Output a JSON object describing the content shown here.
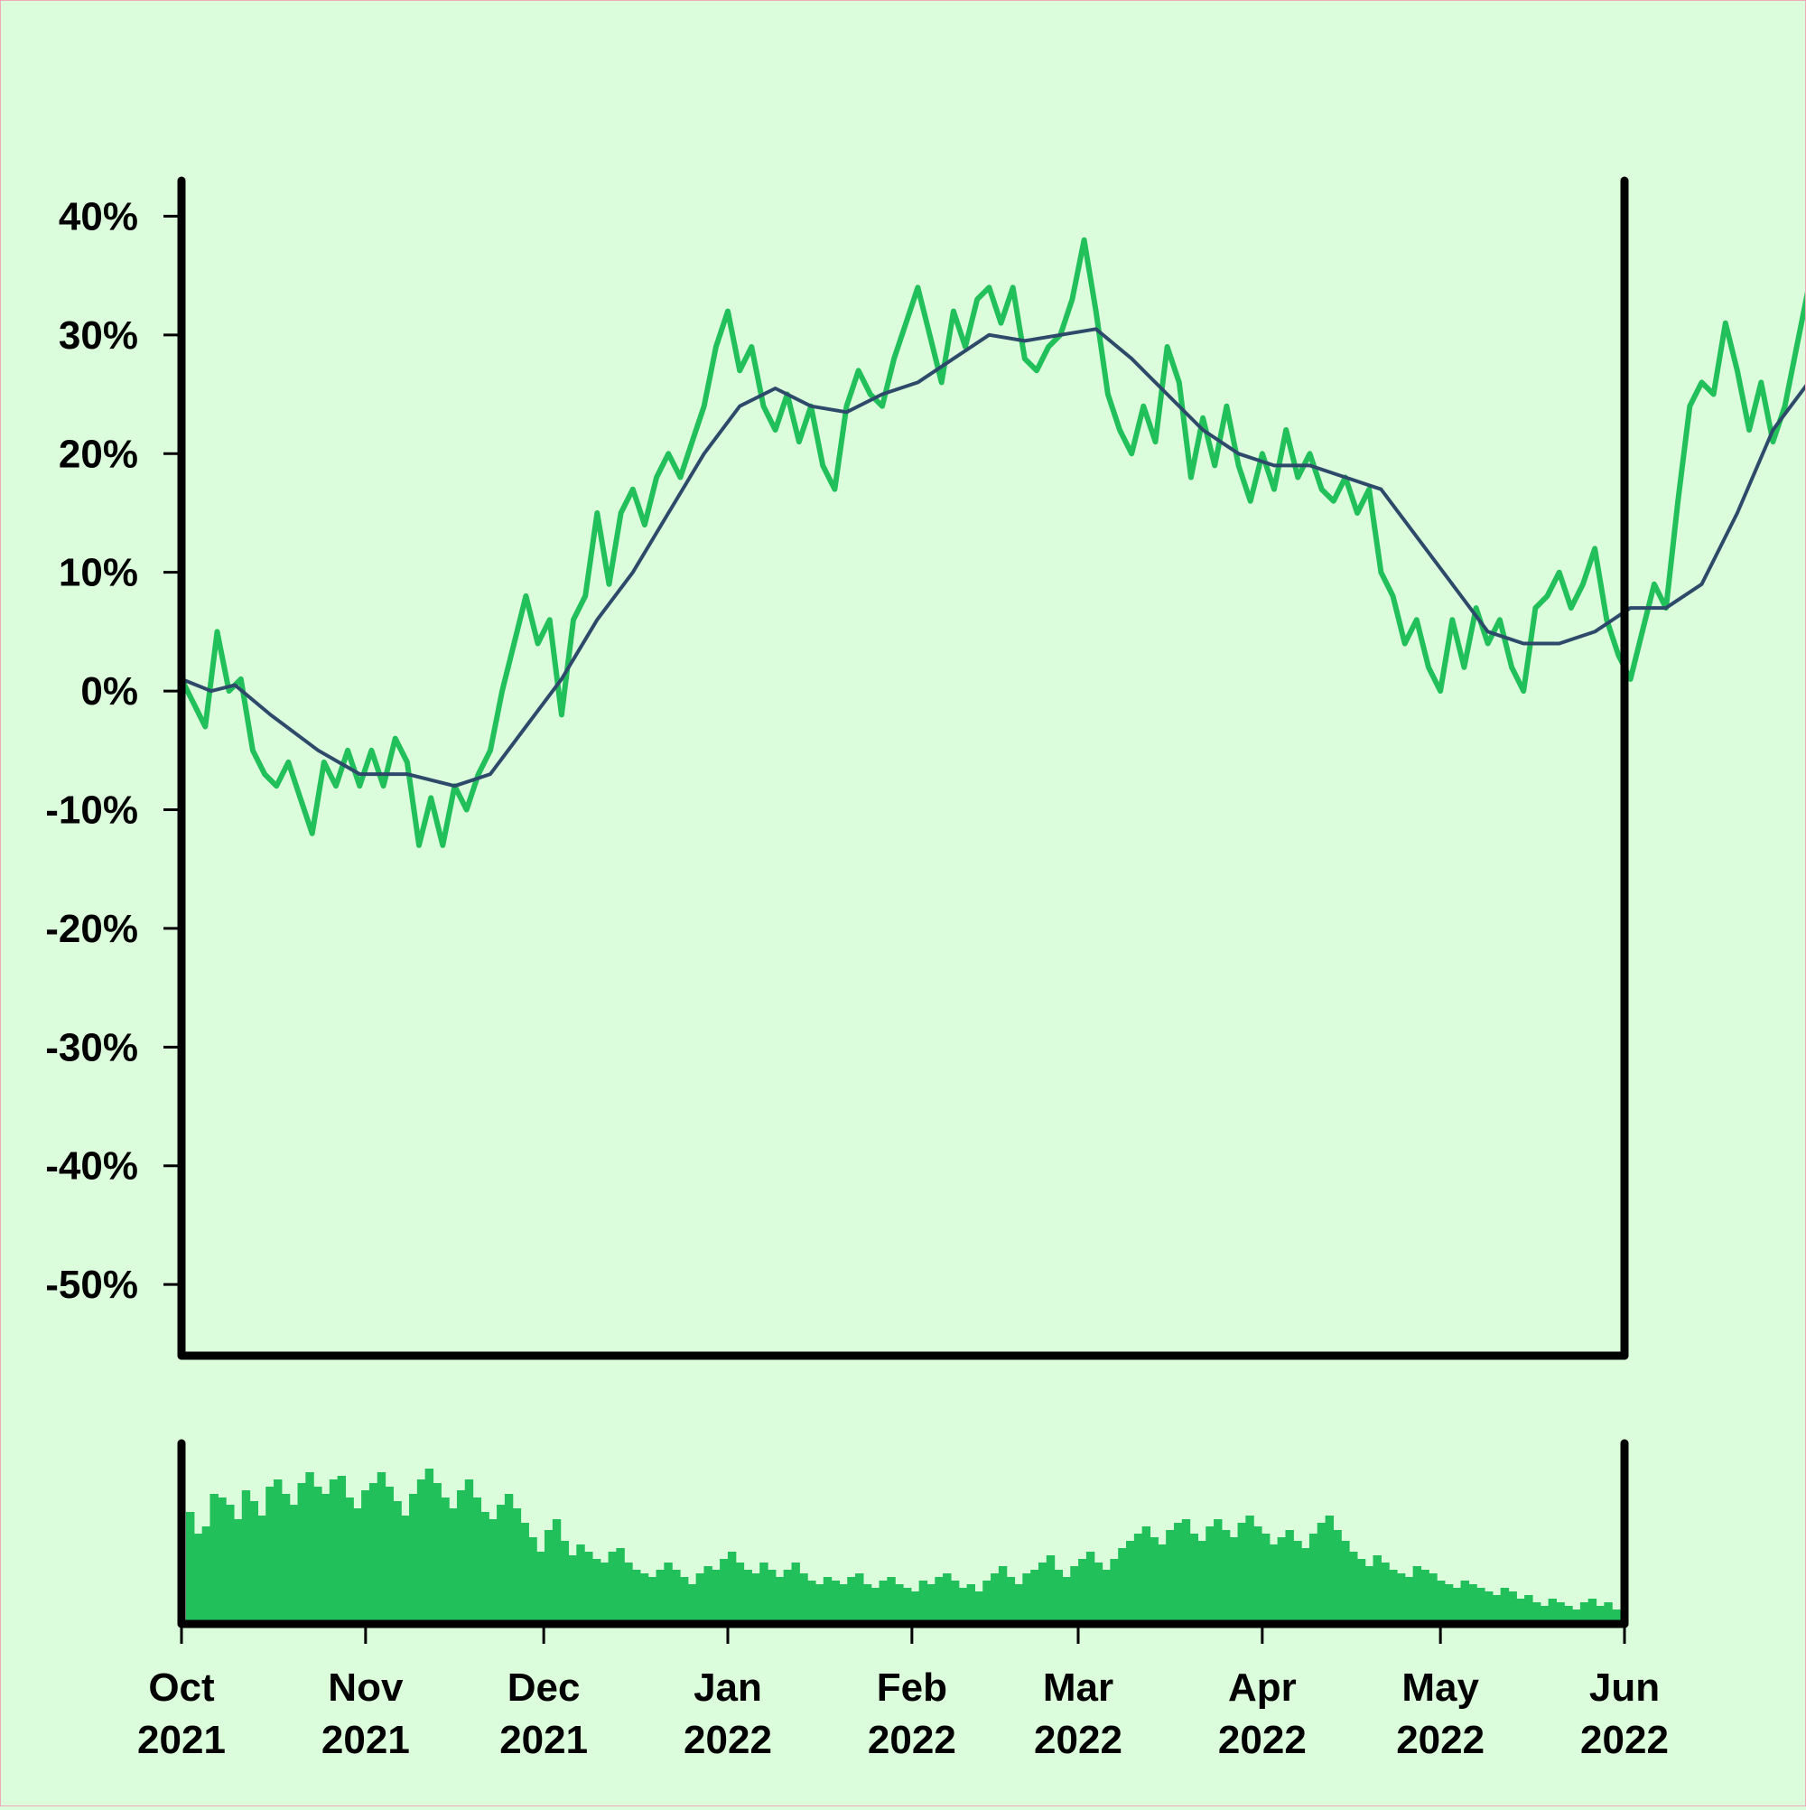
{
  "chart_data": {
    "type": "line",
    "price_panel": {
      "y_tick_labels": [
        "40%",
        "30%",
        "20%",
        "10%",
        "0%",
        "-10%",
        "-20%",
        "-30%",
        "-40%",
        "-50%"
      ],
      "y_tick_values": [
        40,
        30,
        20,
        10,
        0,
        -10,
        -20,
        -30,
        -40,
        -50
      ],
      "ylim": [
        -56,
        43
      ],
      "series": [
        {
          "color": "#22c05a",
          "style": "thick",
          "points": [
            [
              "2021-10-01",
              1
            ],
            [
              "2021-10-03",
              -1
            ],
            [
              "2021-10-05",
              -3
            ],
            [
              "2021-10-07",
              5
            ],
            [
              "2021-10-09",
              0
            ],
            [
              "2021-10-11",
              1
            ],
            [
              "2021-10-13",
              -5
            ],
            [
              "2021-10-15",
              -7
            ],
            [
              "2021-10-17",
              -8
            ],
            [
              "2021-10-19",
              -6
            ],
            [
              "2021-10-21",
              -9
            ],
            [
              "2021-10-23",
              -12
            ],
            [
              "2021-10-25",
              -6
            ],
            [
              "2021-10-27",
              -8
            ],
            [
              "2021-10-29",
              -5
            ],
            [
              "2021-10-31",
              -8
            ],
            [
              "2021-11-02",
              -5
            ],
            [
              "2021-11-04",
              -8
            ],
            [
              "2021-11-06",
              -4
            ],
            [
              "2021-11-08",
              -6
            ],
            [
              "2021-11-10",
              -13
            ],
            [
              "2021-11-12",
              -9
            ],
            [
              "2021-11-14",
              -13
            ],
            [
              "2021-11-16",
              -8
            ],
            [
              "2021-11-18",
              -10
            ],
            [
              "2021-11-20",
              -7
            ],
            [
              "2021-11-22",
              -5
            ],
            [
              "2021-11-24",
              0
            ],
            [
              "2021-11-26",
              4
            ],
            [
              "2021-11-28",
              8
            ],
            [
              "2021-11-30",
              4
            ],
            [
              "2021-12-02",
              6
            ],
            [
              "2021-12-04",
              -2
            ],
            [
              "2021-12-06",
              6
            ],
            [
              "2021-12-08",
              8
            ],
            [
              "2021-12-10",
              15
            ],
            [
              "2021-12-12",
              9
            ],
            [
              "2021-12-14",
              15
            ],
            [
              "2021-12-16",
              17
            ],
            [
              "2021-12-18",
              14
            ],
            [
              "2021-12-20",
              18
            ],
            [
              "2021-12-22",
              20
            ],
            [
              "2021-12-24",
              18
            ],
            [
              "2021-12-26",
              21
            ],
            [
              "2021-12-28",
              24
            ],
            [
              "2021-12-30",
              29
            ],
            [
              "2022-01-01",
              32
            ],
            [
              "2022-01-03",
              27
            ],
            [
              "2022-01-05",
              29
            ],
            [
              "2022-01-07",
              24
            ],
            [
              "2022-01-09",
              22
            ],
            [
              "2022-01-11",
              25
            ],
            [
              "2022-01-13",
              21
            ],
            [
              "2022-01-15",
              24
            ],
            [
              "2022-01-17",
              19
            ],
            [
              "2022-01-19",
              17
            ],
            [
              "2022-01-21",
              24
            ],
            [
              "2022-01-23",
              27
            ],
            [
              "2022-01-25",
              25
            ],
            [
              "2022-01-27",
              24
            ],
            [
              "2022-01-29",
              28
            ],
            [
              "2022-01-31",
              31
            ],
            [
              "2022-02-02",
              34
            ],
            [
              "2022-02-04",
              30
            ],
            [
              "2022-02-06",
              26
            ],
            [
              "2022-02-08",
              32
            ],
            [
              "2022-02-10",
              29
            ],
            [
              "2022-02-12",
              33
            ],
            [
              "2022-02-14",
              34
            ],
            [
              "2022-02-16",
              31
            ],
            [
              "2022-02-18",
              34
            ],
            [
              "2022-02-20",
              28
            ],
            [
              "2022-02-22",
              27
            ],
            [
              "2022-02-24",
              29
            ],
            [
              "2022-02-26",
              30
            ],
            [
              "2022-02-28",
              33
            ],
            [
              "2022-03-02",
              38
            ],
            [
              "2022-03-04",
              32
            ],
            [
              "2022-03-06",
              25
            ],
            [
              "2022-03-08",
              22
            ],
            [
              "2022-03-10",
              20
            ],
            [
              "2022-03-12",
              24
            ],
            [
              "2022-03-14",
              21
            ],
            [
              "2022-03-16",
              29
            ],
            [
              "2022-03-18",
              26
            ],
            [
              "2022-03-20",
              18
            ],
            [
              "2022-03-22",
              23
            ],
            [
              "2022-03-24",
              19
            ],
            [
              "2022-03-26",
              24
            ],
            [
              "2022-03-28",
              19
            ],
            [
              "2022-03-30",
              16
            ],
            [
              "2022-04-01",
              20
            ],
            [
              "2022-04-03",
              17
            ],
            [
              "2022-04-05",
              22
            ],
            [
              "2022-04-07",
              18
            ],
            [
              "2022-04-09",
              20
            ],
            [
              "2022-04-11",
              17
            ],
            [
              "2022-04-13",
              16
            ],
            [
              "2022-04-15",
              18
            ],
            [
              "2022-04-17",
              15
            ],
            [
              "2022-04-19",
              17
            ],
            [
              "2022-04-21",
              10
            ],
            [
              "2022-04-23",
              8
            ],
            [
              "2022-04-25",
              4
            ],
            [
              "2022-04-27",
              6
            ],
            [
              "2022-04-29",
              2
            ],
            [
              "2022-05-01",
              0
            ],
            [
              "2022-05-03",
              6
            ],
            [
              "2022-05-05",
              2
            ],
            [
              "2022-05-07",
              7
            ],
            [
              "2022-05-09",
              4
            ],
            [
              "2022-05-11",
              6
            ],
            [
              "2022-05-13",
              2
            ],
            [
              "2022-05-15",
              0
            ],
            [
              "2022-05-17",
              7
            ],
            [
              "2022-05-19",
              8
            ],
            [
              "2022-05-21",
              10
            ],
            [
              "2022-05-23",
              7
            ],
            [
              "2022-05-25",
              9
            ],
            [
              "2022-05-27",
              12
            ],
            [
              "2022-05-29",
              6
            ],
            [
              "2022-05-31",
              3
            ],
            [
              "2022-06-02",
              1
            ],
            [
              "2022-06-04",
              5
            ],
            [
              "2022-06-06",
              9
            ],
            [
              "2022-06-08",
              7
            ],
            [
              "2022-06-10",
              16
            ],
            [
              "2022-06-12",
              24
            ],
            [
              "2022-06-14",
              26
            ],
            [
              "2022-06-16",
              25
            ],
            [
              "2022-06-18",
              31
            ],
            [
              "2022-06-20",
              27
            ],
            [
              "2022-06-22",
              22
            ],
            [
              "2022-06-24",
              26
            ],
            [
              "2022-06-26",
              21
            ],
            [
              "2022-06-28",
              24
            ],
            [
              "2022-06-30",
              29
            ],
            [
              "2022-07-02",
              34
            ],
            [
              "2022-07-04",
              31
            ],
            [
              "2022-07-06",
              30
            ],
            [
              "2022-07-08",
              33
            ],
            [
              "2022-07-10",
              34
            ],
            [
              "2022-07-12",
              32
            ],
            [
              "2022-07-14",
              36
            ],
            [
              "2022-07-16",
              42
            ],
            [
              "2022-07-18",
              41
            ],
            [
              "2022-07-20",
              39
            ],
            [
              "2022-07-22",
              40
            ],
            [
              "2022-07-24",
              42
            ],
            [
              "2022-07-26",
              38
            ],
            [
              "2022-07-28",
              40
            ],
            [
              "2022-07-30",
              37
            ],
            [
              "2022-08-01",
              41
            ],
            [
              "2022-08-03",
              42
            ],
            [
              "2022-08-05",
              40
            ]
          ]
        },
        {
          "color": "#2d4a6a",
          "style": "thin",
          "points": [
            [
              "2021-10-01",
              1
            ],
            [
              "2021-10-06",
              0
            ],
            [
              "2021-10-10",
              0.5
            ],
            [
              "2021-10-16",
              -2
            ],
            [
              "2021-10-24",
              -5
            ],
            [
              "2021-10-31",
              -7
            ],
            [
              "2021-11-08",
              -7
            ],
            [
              "2021-11-16",
              -8
            ],
            [
              "2021-11-22",
              -7
            ],
            [
              "2021-11-28",
              -3
            ],
            [
              "2021-12-04",
              1
            ],
            [
              "2021-12-10",
              6
            ],
            [
              "2021-12-16",
              10
            ],
            [
              "2021-12-22",
              15
            ],
            [
              "2021-12-28",
              20
            ],
            [
              "2022-01-03",
              24
            ],
            [
              "2022-01-09",
              25.5
            ],
            [
              "2022-01-15",
              24
            ],
            [
              "2022-01-21",
              23.5
            ],
            [
              "2022-01-27",
              25
            ],
            [
              "2022-02-02",
              26
            ],
            [
              "2022-02-08",
              28
            ],
            [
              "2022-02-14",
              30
            ],
            [
              "2022-02-20",
              29.5
            ],
            [
              "2022-02-26",
              30
            ],
            [
              "2022-03-04",
              30.5
            ],
            [
              "2022-03-10",
              28
            ],
            [
              "2022-03-16",
              25
            ],
            [
              "2022-03-22",
              22
            ],
            [
              "2022-03-28",
              20
            ],
            [
              "2022-04-03",
              19
            ],
            [
              "2022-04-09",
              19
            ],
            [
              "2022-04-15",
              18
            ],
            [
              "2022-04-21",
              17
            ],
            [
              "2022-04-27",
              13
            ],
            [
              "2022-05-03",
              9
            ],
            [
              "2022-05-09",
              5
            ],
            [
              "2022-05-15",
              4
            ],
            [
              "2022-05-21",
              4
            ],
            [
              "2022-05-27",
              5
            ],
            [
              "2022-06-02",
              7
            ],
            [
              "2022-06-08",
              7
            ],
            [
              "2022-06-14",
              9
            ],
            [
              "2022-06-20",
              15
            ],
            [
              "2022-06-26",
              22
            ],
            [
              "2022-07-02",
              26
            ],
            [
              "2022-07-08",
              28
            ],
            [
              "2022-07-14",
              29
            ],
            [
              "2022-07-20",
              33
            ],
            [
              "2022-07-26",
              37
            ],
            [
              "2022-08-01",
              40
            ],
            [
              "2022-08-05",
              40.5
            ]
          ]
        }
      ]
    },
    "volume_panel": {
      "color": "#22c05a",
      "ylim": [
        0,
        100
      ],
      "values": [
        62,
        50,
        54,
        72,
        70,
        66,
        58,
        74,
        68,
        60,
        76,
        80,
        72,
        66,
        78,
        84,
        76,
        72,
        80,
        82,
        70,
        64,
        74,
        78,
        84,
        76,
        68,
        60,
        72,
        80,
        86,
        78,
        70,
        64,
        74,
        80,
        70,
        62,
        58,
        66,
        72,
        64,
        56,
        48,
        40,
        52,
        58,
        46,
        38,
        44,
        40,
        36,
        34,
        40,
        42,
        34,
        30,
        28,
        26,
        30,
        34,
        30,
        26,
        22,
        28,
        32,
        30,
        36,
        40,
        34,
        30,
        28,
        34,
        30,
        26,
        30,
        34,
        28,
        24,
        22,
        26,
        24,
        22,
        26,
        28,
        22,
        20,
        24,
        26,
        22,
        20,
        18,
        24,
        22,
        26,
        28,
        24,
        20,
        22,
        18,
        24,
        28,
        32,
        26,
        22,
        28,
        30,
        34,
        38,
        30,
        26,
        32,
        36,
        40,
        34,
        30,
        36,
        42,
        46,
        50,
        54,
        48,
        44,
        52,
        56,
        58,
        50,
        46,
        54,
        58,
        52,
        48,
        56,
        60,
        54,
        50,
        44,
        48,
        52,
        46,
        42,
        50,
        56,
        60,
        52,
        46,
        40,
        36,
        32,
        38,
        34,
        30,
        28,
        26,
        32,
        30,
        28,
        24,
        22,
        20,
        24,
        22,
        20,
        18,
        16,
        20,
        18,
        14,
        16,
        12,
        10,
        14,
        12,
        10,
        8,
        12,
        14,
        10,
        12,
        8
      ]
    },
    "x_tick_labels": [
      {
        "date": "2021-10-01",
        "month": "Oct",
        "year": "2021"
      },
      {
        "date": "2021-11-01",
        "month": "Nov",
        "year": "2021"
      },
      {
        "date": "2021-12-01",
        "month": "Dec",
        "year": "2021"
      },
      {
        "date": "2022-01-01",
        "month": "Jan",
        "year": "2022"
      },
      {
        "date": "2022-02-01",
        "month": "Feb",
        "year": "2022"
      },
      {
        "date": "2022-03-01",
        "month": "Mar",
        "year": "2022"
      },
      {
        "date": "2022-04-01",
        "month": "Apr",
        "year": "2022"
      },
      {
        "date": "2022-05-01",
        "month": "May",
        "year": "2022"
      },
      {
        "date": "2022-06-01",
        "month": "Jun",
        "year": "2022"
      }
    ],
    "xlim": [
      "2021-10-01",
      "2022-06-01"
    ],
    "background": "#dcfddc",
    "grid": false
  }
}
